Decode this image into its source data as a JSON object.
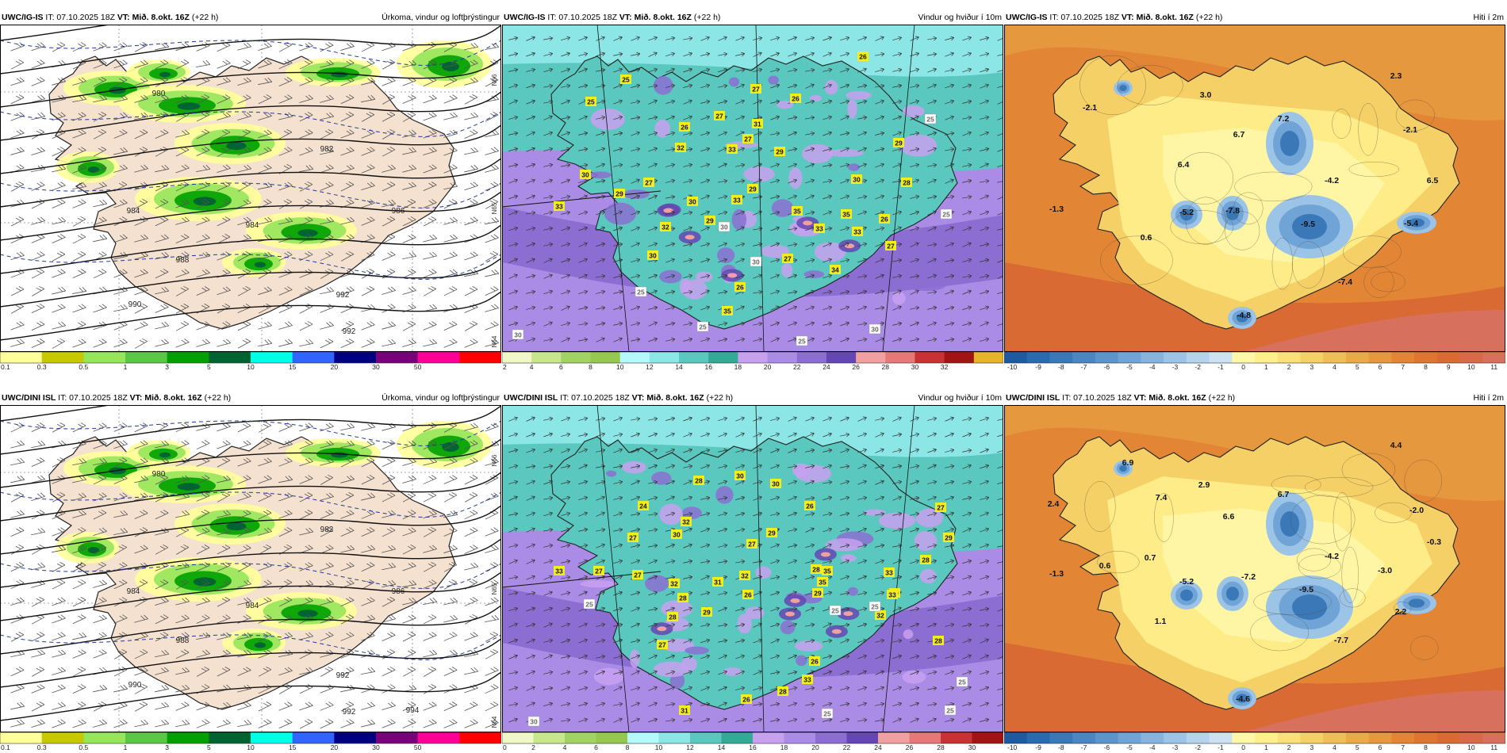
{
  "colors": {
    "land_tan": "#f5e1cf",
    "sea_white": "#ffffff",
    "contour": "#111111",
    "blue_dash": "#1f3a9a",
    "gust_label_bg": "#f2ee1a"
  },
  "panels": [
    {
      "kind": "precip",
      "model": "UWC/IG-IS",
      "it": "IT: 07.10.2025 18Z",
      "vt": "VT: Mið. 8.okt. 16Z",
      "lead": "(+22 h)",
      "title": "Úrkoma, vindur og loftþrýstingur",
      "pressure_labels": [
        "980",
        "982",
        "984",
        "984",
        "986",
        "988",
        "990",
        "992",
        "992"
      ],
      "lat_labels": [
        "N66",
        "N65",
        "N64"
      ],
      "legend": {
        "ticks": [
          "0.1",
          "0.3",
          "0.5",
          "1",
          "3",
          "5",
          "10",
          "15",
          "20",
          "30",
          "50"
        ],
        "colors": [
          "#ffff99",
          "#c8c800",
          "#96e65a",
          "#5ac846",
          "#00a000",
          "#006432",
          "#00ffe6",
          "#3264ff",
          "#000080",
          "#780078",
          "#ff0096",
          "#ff0000"
        ]
      }
    },
    {
      "kind": "wind",
      "model": "UWC/IG-IS",
      "it": "IT: 07.10.2025 18Z",
      "vt": "VT: Mið. 8.okt. 16Z",
      "lead": "(+22 h)",
      "title": "Vindur og hviður í 10m",
      "gust_labels": [
        "25",
        "25",
        "26",
        "27",
        "27",
        "31",
        "26",
        "26",
        "32",
        "33",
        "27",
        "29",
        "30",
        "33",
        "29",
        "27",
        "30",
        "33",
        "29",
        "35",
        "35",
        "33",
        "33",
        "26",
        "27",
        "29",
        "30",
        "28",
        "29",
        "32",
        "27",
        "34",
        "30",
        "26",
        "35",
        "25",
        "25",
        "25",
        "30",
        "30",
        "30",
        "30",
        "25",
        "25",
        "25"
      ],
      "legend": {
        "ticks": [
          "2",
          "4",
          "6",
          "8",
          "10",
          "12",
          "14",
          "16",
          "18",
          "20",
          "22",
          "24",
          "26",
          "28",
          "30",
          "32"
        ],
        "colors": [
          "#f0f8c8",
          "#c8e68c",
          "#a0d264",
          "#96c850",
          "#b4fafa",
          "#8ce6e6",
          "#5ac8be",
          "#32aa96",
          "#c8a0f0",
          "#aa8ce6",
          "#8c6ed2",
          "#6446b4",
          "#f0a0a0",
          "#e67878",
          "#c83232",
          "#a01414",
          "#e6b428"
        ]
      }
    },
    {
      "kind": "temp",
      "model": "UWC/IG-IS",
      "it": "IT: 07.10.2025 18Z",
      "vt": "VT: Mið. 8.okt. 16Z",
      "lead": "(+22 h)",
      "title": "Hiti í 2m",
      "temp_labels": [
        "2.3",
        "3.0",
        "-2.1",
        "7.2",
        "6.7",
        "-2.1",
        "6.4",
        "-4.2",
        "6.5",
        "-1.3",
        "-5.2",
        "-7.8",
        "-9.5",
        "-5.4",
        "0.6",
        "-7.4",
        "-4.8"
      ],
      "legend": {
        "ticks": [
          "-10",
          "-9",
          "-8",
          "-7",
          "-6",
          "-5",
          "-4",
          "-3",
          "-2",
          "-1",
          "0",
          "1",
          "2",
          "3",
          "4",
          "5",
          "6",
          "7",
          "8",
          "9",
          "10",
          "11"
        ],
        "colors": [
          "#1e5aa0",
          "#2a6aae",
          "#3a78b8",
          "#4a86c2",
          "#5c94cc",
          "#70a4d6",
          "#86b4de",
          "#9cc4e6",
          "#b4d4ee",
          "#cce2f2",
          "#fff7a8",
          "#ffee8c",
          "#fbe07a",
          "#f5d066",
          "#f0be56",
          "#eaaa48",
          "#e6983e",
          "#e28636",
          "#de7632",
          "#da6a34",
          "#d86a4a",
          "#d8705e"
        ]
      }
    },
    {
      "kind": "precip",
      "model": "UWC/DINI ISL",
      "it": "IT: 07.10.2025 18Z",
      "vt": "VT: Mið. 8.okt. 16Z",
      "lead": "(+22 h)",
      "title": "Úrkoma, vindur og loftþrýstingur",
      "pressure_labels": [
        "980",
        "982",
        "984",
        "984",
        "986",
        "988",
        "990",
        "992",
        "992",
        "994"
      ],
      "lat_labels": [
        "N66",
        "N65",
        "N64"
      ],
      "legend": {
        "ticks": [
          "0.1",
          "0.3",
          "0.5",
          "1",
          "3",
          "5",
          "10",
          "15",
          "20",
          "30",
          "50"
        ],
        "colors": [
          "#ffff99",
          "#c8c800",
          "#96e65a",
          "#5ac846",
          "#00a000",
          "#006432",
          "#00ffe6",
          "#3264ff",
          "#000080",
          "#780078",
          "#ff0096",
          "#ff0000"
        ]
      }
    },
    {
      "kind": "wind",
      "model": "UWC/DINI ISL",
      "it": "IT: 07.10.2025 18Z",
      "vt": "VT: Mið. 8.okt. 16Z",
      "lead": "(+22 h)",
      "title": "Vindur og hviður í 10m",
      "gust_labels": [
        "30",
        "28",
        "30",
        "24",
        "32",
        "26",
        "30",
        "29",
        "27",
        "27",
        "33",
        "27",
        "27",
        "32",
        "31",
        "32",
        "28",
        "26",
        "29",
        "28",
        "28",
        "35",
        "33",
        "32",
        "27",
        "29",
        "28",
        "30",
        "29",
        "33",
        "26",
        "28",
        "27",
        "35",
        "31",
        "26",
        "33",
        "28",
        "29",
        "29",
        "25",
        "25",
        "30",
        "25",
        "25",
        "25",
        "25",
        "25"
      ],
      "legend": {
        "ticks": [
          "0",
          "2",
          "4",
          "6",
          "8",
          "10",
          "12",
          "14",
          "16",
          "18",
          "20",
          "22",
          "24",
          "26",
          "28",
          "30"
        ],
        "colors": [
          "#f0f8c8",
          "#c8e68c",
          "#a0d264",
          "#96c850",
          "#b4fafa",
          "#8ce6e6",
          "#5ac8be",
          "#32aa96",
          "#c8a0f0",
          "#aa8ce6",
          "#8c6ed2",
          "#6446b4",
          "#f0a0a0",
          "#e67878",
          "#c83232",
          "#a01414"
        ]
      }
    },
    {
      "kind": "temp",
      "model": "UWC/DINI ISL",
      "it": "IT: 07.10.2025 18Z",
      "vt": "VT: Mið. 8.okt. 16Z",
      "lead": "(+22 h)",
      "title": "Hiti í 2m",
      "temp_labels": [
        "4.4",
        "6.9",
        "2.9",
        "6.7",
        "-2.0",
        "2.4",
        "7.4",
        "6.6",
        "-0.3",
        "0.6",
        "0.7",
        "-4.2",
        "-1.3",
        "-5.2",
        "-7.2",
        "-9.5",
        "-3.0",
        "2.2",
        "1.1",
        "-7.7",
        "-4.6"
      ],
      "legend": {
        "ticks": [
          "-10",
          "-9",
          "-8",
          "-7",
          "-6",
          "-5",
          "-4",
          "-3",
          "-2",
          "-1",
          "0",
          "1",
          "2",
          "3",
          "4",
          "5",
          "6",
          "7",
          "8",
          "9",
          "10",
          "11"
        ],
        "colors": [
          "#1e5aa0",
          "#2a6aae",
          "#3a78b8",
          "#4a86c2",
          "#5c94cc",
          "#70a4d6",
          "#86b4de",
          "#9cc4e6",
          "#b4d4ee",
          "#cce2f2",
          "#fff7a8",
          "#ffee8c",
          "#fbe07a",
          "#f5d066",
          "#f0be56",
          "#eaaa48",
          "#e6983e",
          "#e28636",
          "#de7632",
          "#da6a34",
          "#d86a4a",
          "#d8705e"
        ]
      }
    }
  ]
}
